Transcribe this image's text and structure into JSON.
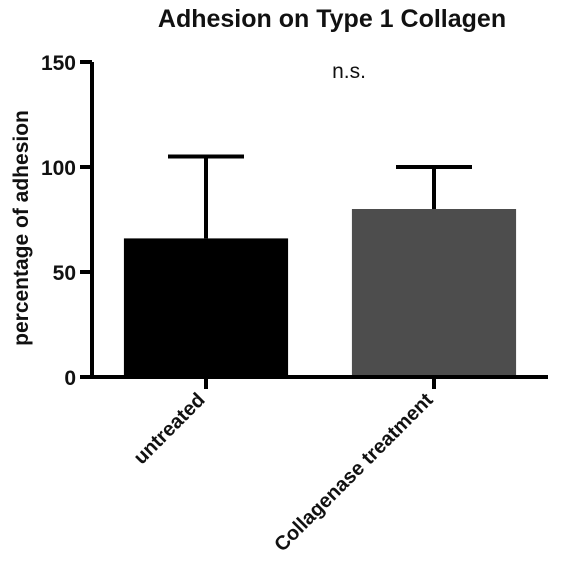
{
  "chart_data": {
    "type": "bar",
    "title": "Adhesion on Type 1 Collagen",
    "xlabel": "",
    "ylabel": "percentage of adhesion",
    "categories": [
      "untreated",
      "Collagenase treatment"
    ],
    "values": [
      66,
      80
    ],
    "error_upper": [
      105,
      100
    ],
    "colors": [
      "#000000",
      "#4d4d4d"
    ],
    "ylim": [
      0,
      150
    ],
    "yticks": [
      0,
      50,
      100,
      150
    ],
    "annotation": "n.s.",
    "grid": false,
    "legend": "none"
  }
}
